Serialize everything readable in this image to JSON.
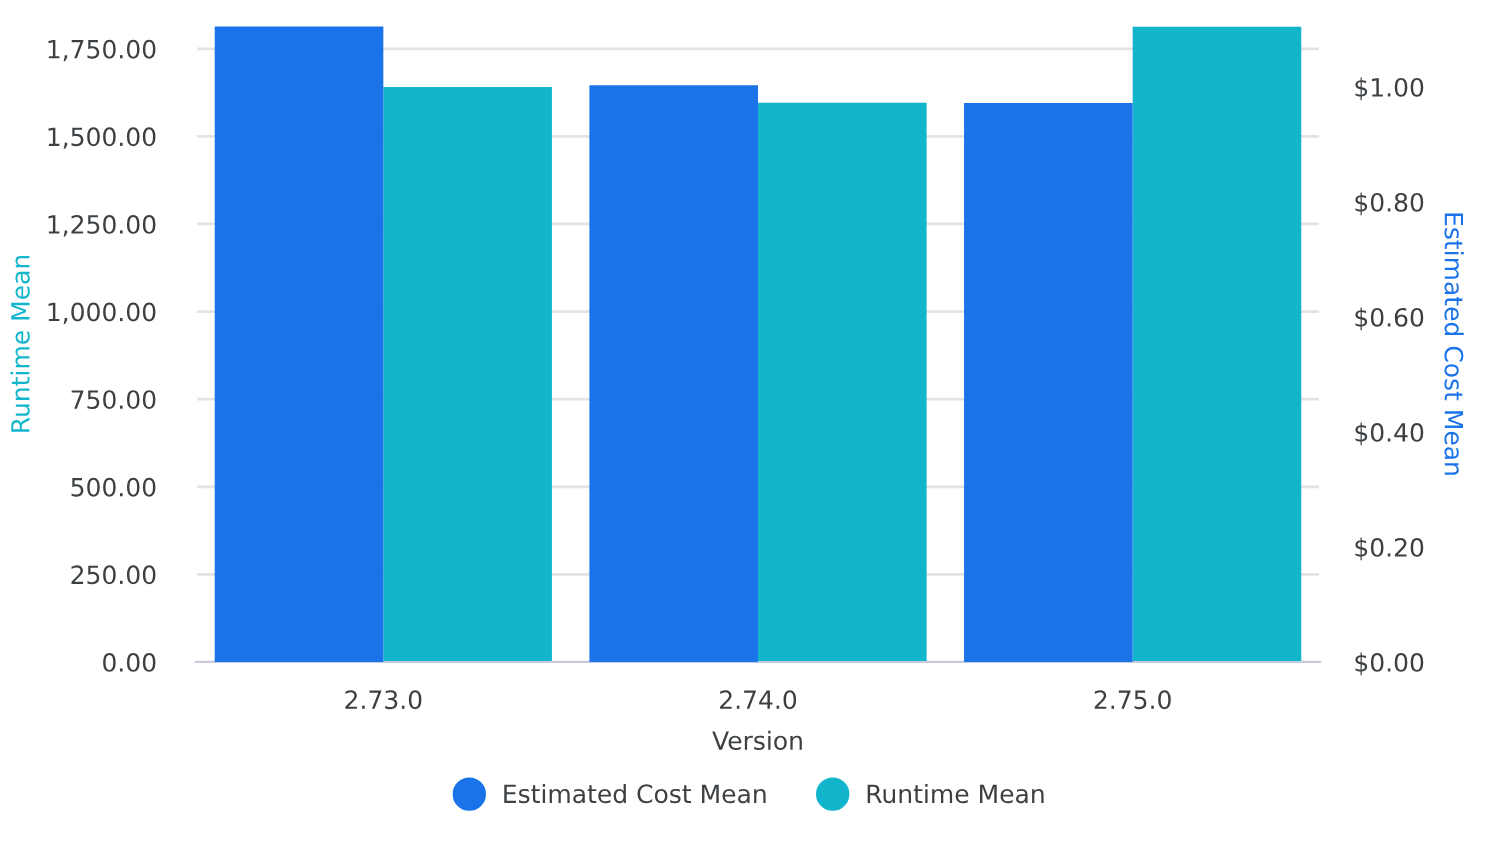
{
  "chart_data": {
    "type": "bar",
    "xlabel": "Version",
    "ylabel": "Runtime Mean",
    "y2label": "Estimated Cost Mean",
    "categories": [
      "2.73.0",
      "2.74.0",
      "2.75.0"
    ],
    "series": [
      {
        "name": "Estimated Cost Mean",
        "color": "#1a73e8",
        "values": [
          1.105,
          1.003,
          0.972
        ],
        "axis": "y2"
      },
      {
        "name": "Runtime Mean",
        "color": "#12b5cb",
        "values": [
          1641,
          1596,
          1813
        ]
      }
    ],
    "ylim": [
      0,
      1815
    ],
    "yticks": [
      {
        "value": 0,
        "label": "0.00"
      },
      {
        "value": 250,
        "label": "250.00"
      },
      {
        "value": 500,
        "label": "500.00"
      },
      {
        "value": 750,
        "label": "750.00"
      },
      {
        "value": 1000,
        "label": "1,000.00"
      },
      {
        "value": 1250,
        "label": "1,250.00"
      },
      {
        "value": 1500,
        "label": "1,500.00"
      },
      {
        "value": 1750,
        "label": "1,750.00"
      }
    ],
    "y2lim": [
      0,
      1.106
    ],
    "y2ticks": [
      {
        "value": 0,
        "label": "$0.00"
      },
      {
        "value": 0.2,
        "label": "$0.20"
      },
      {
        "value": 0.4,
        "label": "$0.40"
      },
      {
        "value": 0.6,
        "label": "$0.60"
      },
      {
        "value": 0.8,
        "label": "$0.80"
      },
      {
        "value": 1.0,
        "label": "$1.00"
      }
    ],
    "grid": "y",
    "legend": "bottom",
    "marker": "circle"
  }
}
